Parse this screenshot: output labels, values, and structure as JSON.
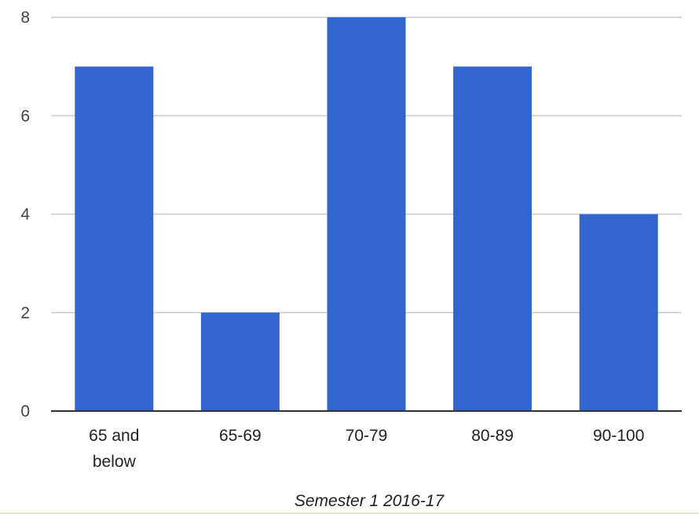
{
  "chart_data": {
    "type": "bar",
    "title": "",
    "xlabel": "Semester 1 2016-17",
    "ylabel": "",
    "categories": [
      [
        "65 and",
        "below"
      ],
      [
        "65-69"
      ],
      [
        "70-79"
      ],
      [
        "80-89"
      ],
      [
        "90-100"
      ]
    ],
    "values": [
      7,
      2,
      8,
      7,
      4
    ],
    "ylim": [
      0,
      8
    ],
    "yticks": [
      0,
      2,
      4,
      6,
      8
    ],
    "grid": true,
    "legend": "none",
    "bar_color": "#3366cc",
    "grid_color": "#cccccc",
    "axis_color": "#333333"
  }
}
